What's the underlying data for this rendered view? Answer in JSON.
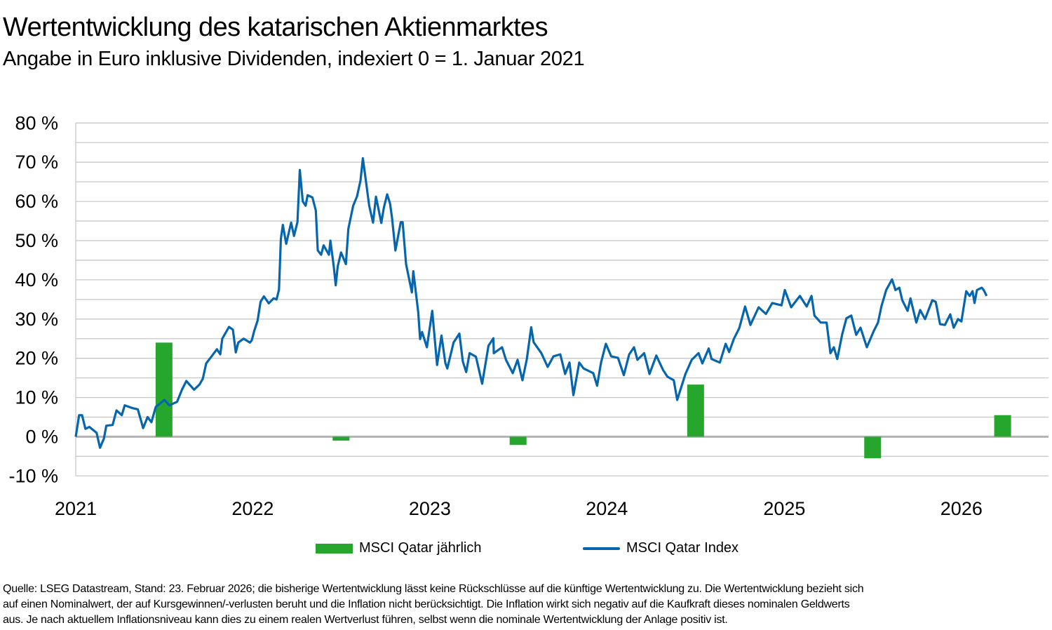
{
  "chart_data": {
    "type": "bar+line",
    "title": "Wertentwicklung des katarischen Aktienmarktes",
    "subtitle": "Angabe in Euro inklusive Dividenden, indexiert 0 = 1. Januar 2021",
    "xlabel": "",
    "ylabel": "",
    "ylim": [
      -10,
      80
    ],
    "yticks": [
      "80 %",
      "70 %",
      "60 %",
      "50 %",
      "40 %",
      "30 %",
      "20 %",
      "10 %",
      "0 %",
      "-10 %"
    ],
    "xticks": [
      "2021",
      "2022",
      "2023",
      "2024",
      "2025",
      "2026"
    ],
    "xlim": [
      "2021-01-01",
      "2026-07-01"
    ],
    "grid": true,
    "legend_position": "bottom",
    "colors": {
      "bar": "#27a62e",
      "line": "#0565ad",
      "grid": "#c8c8c8",
      "zero_line": "#b4b4b4"
    },
    "series": [
      {
        "name": "MSCI Qatar jährlich",
        "type": "bar",
        "categories": [
          "2021",
          "2022",
          "2023",
          "2024",
          "2025",
          "2026"
        ],
        "values": [
          24.0,
          -1.0,
          -2.1,
          13.3,
          -5.5,
          5.5
        ]
      },
      {
        "name": "MSCI Qatar Index",
        "type": "line",
        "points": [
          [
            "2021-01-01",
            0
          ],
          [
            "2021-01-08",
            5.5
          ],
          [
            "2021-01-14",
            5.5
          ],
          [
            "2021-01-21",
            2
          ],
          [
            "2021-01-29",
            2.5
          ],
          [
            "2021-02-13",
            1
          ],
          [
            "2021-02-20",
            -2.8
          ],
          [
            "2021-02-28",
            -0.5
          ],
          [
            "2021-03-05",
            2.8
          ],
          [
            "2021-03-18",
            3
          ],
          [
            "2021-03-26",
            6.7
          ],
          [
            "2021-04-06",
            5.5
          ],
          [
            "2021-04-12",
            8
          ],
          [
            "2021-04-28",
            7.3
          ],
          [
            "2021-05-09",
            7
          ],
          [
            "2021-05-20",
            2.2
          ],
          [
            "2021-05-29",
            5
          ],
          [
            "2021-06-06",
            3.7
          ],
          [
            "2021-06-15",
            7.6
          ],
          [
            "2021-07-03",
            9.4
          ],
          [
            "2021-07-13",
            8
          ],
          [
            "2021-07-29",
            8.9
          ],
          [
            "2021-08-08",
            12
          ],
          [
            "2021-08-17",
            14.2
          ],
          [
            "2021-09-02",
            12
          ],
          [
            "2021-09-13",
            13.3
          ],
          [
            "2021-09-20",
            14.8
          ],
          [
            "2021-09-27",
            18.7
          ],
          [
            "2021-10-05",
            20
          ],
          [
            "2021-10-19",
            22.3
          ],
          [
            "2021-10-26",
            21
          ],
          [
            "2021-10-30",
            25
          ],
          [
            "2021-11-13",
            28
          ],
          [
            "2021-11-21",
            27.3
          ],
          [
            "2021-11-27",
            21.5
          ],
          [
            "2021-12-02",
            24
          ],
          [
            "2021-12-13",
            25
          ],
          [
            "2021-12-26",
            24
          ],
          [
            "2021-12-30",
            24.6
          ],
          [
            "2022-01-04",
            27
          ],
          [
            "2022-01-11",
            29.6
          ],
          [
            "2022-01-17",
            34.4
          ],
          [
            "2022-01-24",
            35.8
          ],
          [
            "2022-02-03",
            34
          ],
          [
            "2022-02-13",
            35.3
          ],
          [
            "2022-02-19",
            35
          ],
          [
            "2022-02-24",
            37.5
          ],
          [
            "2022-02-28",
            50.5
          ],
          [
            "2022-03-04",
            54
          ],
          [
            "2022-03-11",
            49.2
          ],
          [
            "2022-03-21",
            54.6
          ],
          [
            "2022-03-27",
            51.2
          ],
          [
            "2022-04-03",
            54.7
          ],
          [
            "2022-04-08",
            68
          ],
          [
            "2022-04-14",
            60
          ],
          [
            "2022-04-20",
            58.9
          ],
          [
            "2022-04-24",
            61.6
          ],
          [
            "2022-05-04",
            61
          ],
          [
            "2022-05-11",
            57.7
          ],
          [
            "2022-05-15",
            47.5
          ],
          [
            "2022-05-22",
            46.4
          ],
          [
            "2022-05-27",
            48.8
          ],
          [
            "2022-06-07",
            46.4
          ],
          [
            "2022-06-10",
            50
          ],
          [
            "2022-06-17",
            43.4
          ],
          [
            "2022-06-21",
            38.6
          ],
          [
            "2022-06-25",
            43.4
          ],
          [
            "2022-07-02",
            47
          ],
          [
            "2022-07-12",
            44
          ],
          [
            "2022-07-17",
            53
          ],
          [
            "2022-07-27",
            58.9
          ],
          [
            "2022-08-04",
            61.3
          ],
          [
            "2022-08-11",
            65.3
          ],
          [
            "2022-08-16",
            71
          ],
          [
            "2022-08-22",
            65.4
          ],
          [
            "2022-08-29",
            58.9
          ],
          [
            "2022-09-06",
            54.6
          ],
          [
            "2022-09-12",
            61.2
          ],
          [
            "2022-09-23",
            54.5
          ],
          [
            "2022-09-28",
            58.3
          ],
          [
            "2022-10-05",
            61.8
          ],
          [
            "2022-10-11",
            59.5
          ],
          [
            "2022-10-15",
            55.9
          ],
          [
            "2022-10-22",
            47.5
          ],
          [
            "2022-11-02",
            54.7
          ],
          [
            "2022-11-06",
            54.7
          ],
          [
            "2022-11-13",
            44
          ],
          [
            "2022-11-25",
            36.8
          ],
          [
            "2022-11-28",
            42.2
          ],
          [
            "2022-12-08",
            31.8
          ],
          [
            "2022-12-12",
            24.9
          ],
          [
            "2022-12-16",
            26.7
          ],
          [
            "2022-12-26",
            22.8
          ],
          [
            "2023-01-06",
            32.1
          ],
          [
            "2023-01-16",
            18.3
          ],
          [
            "2023-01-25",
            25.8
          ],
          [
            "2023-02-02",
            18.8
          ],
          [
            "2023-02-06",
            17.4
          ],
          [
            "2023-02-19",
            24
          ],
          [
            "2023-03-03",
            26.3
          ],
          [
            "2023-03-10",
            19.2
          ],
          [
            "2023-03-17",
            16.5
          ],
          [
            "2023-03-24",
            21.3
          ],
          [
            "2023-04-06",
            20.4
          ],
          [
            "2023-04-19",
            13.5
          ],
          [
            "2023-05-02",
            23.2
          ],
          [
            "2023-05-12",
            25.1
          ],
          [
            "2023-05-13",
            21.3
          ],
          [
            "2023-05-30",
            22.8
          ],
          [
            "2023-06-07",
            19.6
          ],
          [
            "2023-06-21",
            16.2
          ],
          [
            "2023-07-01",
            19.6
          ],
          [
            "2023-07-11",
            14.4
          ],
          [
            "2023-07-20",
            19.8
          ],
          [
            "2023-07-29",
            27.9
          ],
          [
            "2023-08-03",
            24.1
          ],
          [
            "2023-08-19",
            21.3
          ],
          [
            "2023-09-01",
            17.8
          ],
          [
            "2023-09-13",
            20.5
          ],
          [
            "2023-09-27",
            21
          ],
          [
            "2023-10-07",
            16
          ],
          [
            "2023-10-16",
            18.9
          ],
          [
            "2023-10-24",
            10.6
          ],
          [
            "2023-11-05",
            18.9
          ],
          [
            "2023-11-14",
            17.4
          ],
          [
            "2023-12-04",
            16.2
          ],
          [
            "2023-12-12",
            13
          ],
          [
            "2023-12-20",
            18.9
          ],
          [
            "2023-12-30",
            23.7
          ],
          [
            "2024-01-10",
            20.5
          ],
          [
            "2024-01-24",
            20.1
          ],
          [
            "2024-02-05",
            15.7
          ],
          [
            "2024-02-16",
            21
          ],
          [
            "2024-02-26",
            22.8
          ],
          [
            "2024-03-04",
            19.6
          ],
          [
            "2024-03-18",
            21.3
          ],
          [
            "2024-03-29",
            16
          ],
          [
            "2024-04-12",
            20.7
          ],
          [
            "2024-04-26",
            17
          ],
          [
            "2024-05-05",
            15.3
          ],
          [
            "2024-05-18",
            14.4
          ],
          [
            "2024-05-25",
            9.4
          ],
          [
            "2024-06-11",
            16
          ],
          [
            "2024-06-24",
            19.6
          ],
          [
            "2024-07-08",
            21.3
          ],
          [
            "2024-07-16",
            18.7
          ],
          [
            "2024-07-29",
            22.5
          ],
          [
            "2024-08-04",
            19.8
          ],
          [
            "2024-08-21",
            18.9
          ],
          [
            "2024-09-02",
            23.7
          ],
          [
            "2024-09-09",
            21.6
          ],
          [
            "2024-09-19",
            25
          ],
          [
            "2024-09-30",
            27.7
          ],
          [
            "2024-10-12",
            33.2
          ],
          [
            "2024-10-23",
            28.5
          ],
          [
            "2024-11-09",
            33
          ],
          [
            "2024-11-24",
            31.3
          ],
          [
            "2024-12-07",
            34.1
          ],
          [
            "2024-12-26",
            33.5
          ],
          [
            "2025-01-02",
            37.4
          ],
          [
            "2025-01-15",
            33
          ],
          [
            "2025-02-02",
            35.9
          ],
          [
            "2025-02-16",
            33.2
          ],
          [
            "2025-02-26",
            35.9
          ],
          [
            "2025-03-04",
            30.9
          ],
          [
            "2025-03-17",
            29.1
          ],
          [
            "2025-03-29",
            29.1
          ],
          [
            "2025-04-06",
            21.3
          ],
          [
            "2025-04-13",
            22.8
          ],
          [
            "2025-04-20",
            19.8
          ],
          [
            "2025-04-30",
            26
          ],
          [
            "2025-05-09",
            30.2
          ],
          [
            "2025-05-19",
            30.9
          ],
          [
            "2025-05-29",
            26
          ],
          [
            "2025-06-07",
            27.8
          ],
          [
            "2025-06-20",
            22.8
          ],
          [
            "2025-07-04",
            26.9
          ],
          [
            "2025-07-13",
            29.1
          ],
          [
            "2025-07-20",
            33.2
          ],
          [
            "2025-07-30",
            37.4
          ],
          [
            "2025-08-11",
            40.1
          ],
          [
            "2025-08-18",
            37.4
          ],
          [
            "2025-08-26",
            38
          ],
          [
            "2025-09-01",
            34.8
          ],
          [
            "2025-09-12",
            32.1
          ],
          [
            "2025-09-18",
            35.3
          ],
          [
            "2025-09-30",
            29.1
          ],
          [
            "2025-10-08",
            32.3
          ],
          [
            "2025-10-18",
            30
          ],
          [
            "2025-11-02",
            34.8
          ],
          [
            "2025-11-09",
            34.4
          ],
          [
            "2025-11-18",
            28.7
          ],
          [
            "2025-11-28",
            28.5
          ],
          [
            "2025-12-09",
            31.2
          ],
          [
            "2025-12-16",
            27.8
          ],
          [
            "2025-12-25",
            30
          ],
          [
            "2026-01-01",
            29.4
          ],
          [
            "2026-01-11",
            37.1
          ],
          [
            "2026-01-18",
            35.9
          ],
          [
            "2026-01-24",
            37.1
          ],
          [
            "2026-01-28",
            34.1
          ],
          [
            "2026-02-02",
            37.4
          ],
          [
            "2026-02-12",
            38
          ],
          [
            "2026-02-16",
            37.4
          ],
          [
            "2026-02-22",
            35.9
          ]
        ]
      }
    ]
  },
  "footnote": {
    "lines": [
      "Quelle: LSEG Datastream, Stand: 23. Februar 2026; die bisherige Wertentwicklung lässt keine Rückschlüsse auf die künftige Wertentwicklung zu. Die Wertentwicklung bezieht sich",
      "auf einen Nominalwert, der auf Kursgewinnen/-verlusten beruht und die Inflation nicht berücksichtigt. Die Inflation wirkt sich negativ auf die Kaufkraft dieses nominalen Geldwerts",
      "aus. Je nach aktuellem Inflationsniveau kann dies zu einem realen Wertverlust führen, selbst wenn die nominale Wertentwicklung der Anlage positiv ist."
    ]
  }
}
